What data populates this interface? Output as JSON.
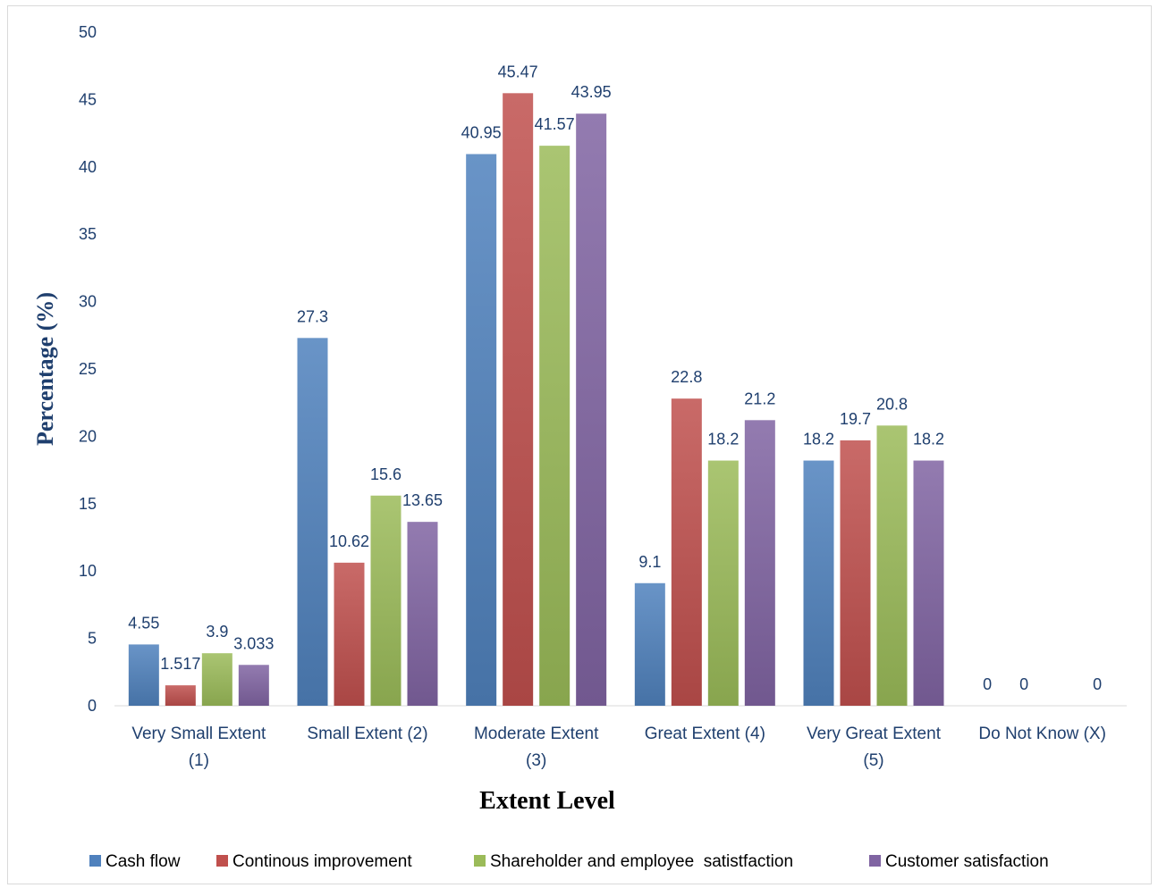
{
  "chart_data": {
    "type": "bar",
    "title": "",
    "xlabel": "Extent Level",
    "ylabel": "Percentage (%)",
    "ylim": [
      0,
      50
    ],
    "yticks": [
      "0",
      "5",
      "10",
      "15",
      "20",
      "25",
      "30",
      "35",
      "40",
      "45",
      "50"
    ],
    "grid": false,
    "legend_position": "bottom",
    "categories": [
      [
        "Very Small Extent",
        "(1)"
      ],
      [
        "Small Extent (2)"
      ],
      [
        "Moderate Extent",
        "(3)"
      ],
      [
        "Great Extent (4)"
      ],
      [
        "Very Great Extent",
        "(5)"
      ],
      [
        "Do Not Know (X)"
      ]
    ],
    "series": [
      {
        "name": "Cash flow",
        "color": "#4f81bd",
        "values": [
          4.55,
          27.3,
          40.95,
          9.1,
          18.2,
          0
        ],
        "labels": [
          "4.55",
          "27.3",
          "40.95",
          "9.1",
          "18.2",
          "0"
        ]
      },
      {
        "name": "Continous improvement",
        "color": "#c0504d",
        "values": [
          1.517,
          10.62,
          45.47,
          22.8,
          19.7,
          0
        ],
        "labels": [
          "1.517",
          "10.62",
          "45.47",
          "22.8",
          "19.7",
          "0"
        ]
      },
      {
        "name": "Shareholder and employee  satistfaction",
        "color": "#9bbb59",
        "values": [
          3.9,
          15.6,
          41.57,
          18.2,
          20.8,
          null
        ],
        "labels": [
          "3.9",
          "15.6",
          "41.57",
          "18.2",
          "20.8",
          ""
        ]
      },
      {
        "name": "Customer satisfaction",
        "color": "#8064a2",
        "values": [
          3.033,
          13.65,
          43.95,
          21.2,
          18.2,
          0
        ],
        "labels": [
          "3.033",
          "13.65",
          "43.95",
          "21.2",
          "18.2",
          "0"
        ]
      }
    ]
  }
}
